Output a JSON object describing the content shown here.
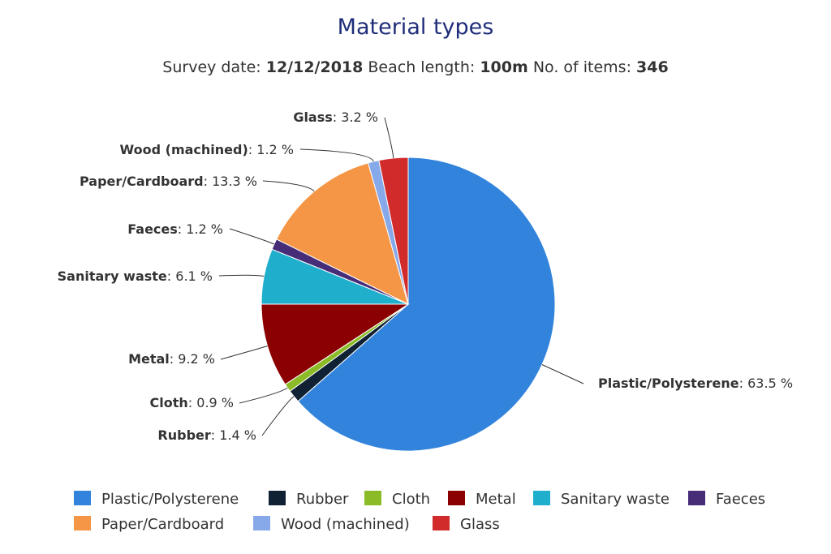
{
  "chart_data": {
    "type": "pie",
    "title": "Material types",
    "subtitle": {
      "parts": [
        {
          "text": "Survey date: ",
          "bold": false
        },
        {
          "text": "12/12/2018",
          "bold": true
        },
        {
          "text": " Beach length: ",
          "bold": false
        },
        {
          "text": "100m",
          "bold": true
        },
        {
          "text": " No. of items: ",
          "bold": false
        },
        {
          "text": "346",
          "bold": true
        }
      ]
    },
    "slices": [
      {
        "name": "Plastic/Polysterene",
        "value": 63.5,
        "label": "63.5 %",
        "color": "#3283db"
      },
      {
        "name": "Rubber",
        "value": 1.4,
        "label": "1.4 %",
        "color": "#0f2133"
      },
      {
        "name": "Cloth",
        "value": 0.9,
        "label": "0.9 %",
        "color": "#8bbb26"
      },
      {
        "name": "Metal",
        "value": 9.2,
        "label": "9.2 %",
        "color": "#8b0000"
      },
      {
        "name": "Sanitary waste",
        "value": 6.1,
        "label": "6.1 %",
        "color": "#1fafcd"
      },
      {
        "name": "Faeces",
        "value": 1.2,
        "label": "1.2 %",
        "color": "#472d78"
      },
      {
        "name": "Paper/Cardboard",
        "value": 13.3,
        "label": "13.3 %",
        "color": "#f49645"
      },
      {
        "name": "Wood (machined)",
        "value": 1.2,
        "label": "1.2 %",
        "color": "#87a9ea"
      },
      {
        "name": "Glass",
        "value": 3.2,
        "label": "3.2 %",
        "color": "#d12b2b"
      }
    ],
    "start_angle": "top (12 o'clock), clockwise",
    "legend": {
      "placement": "bottom",
      "rows": [
        [
          "Plastic/Polysterene",
          "Rubber",
          "Cloth",
          "Metal",
          "Sanitary waste",
          "Faeces"
        ],
        [
          "Paper/Cardboard",
          "Wood (machined)",
          "Glass"
        ]
      ]
    }
  }
}
